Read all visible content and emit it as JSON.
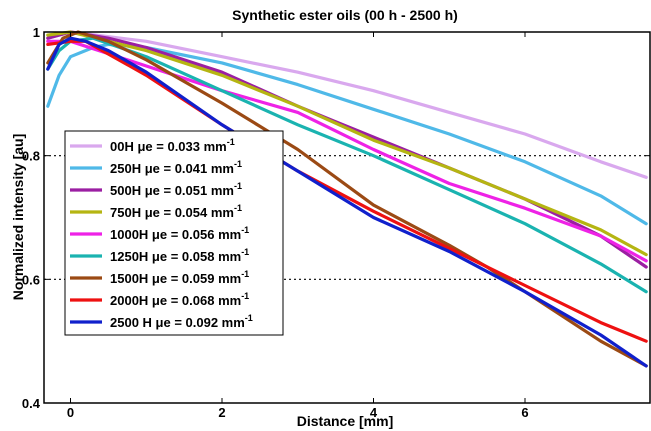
{
  "chart_data": {
    "type": "line",
    "title": "Synthetic ester oils (00 h - 2500 h)",
    "xlabel": "Distance [mm]",
    "ylabel": "Normalized intensity [au]",
    "xlim": [
      -0.35,
      7.65
    ],
    "ylim": [
      0.4,
      1.0
    ],
    "xticks": [
      0,
      2,
      4,
      6
    ],
    "xtick_labels": [
      "0",
      "2",
      "4",
      "6"
    ],
    "yticks": [
      0.4,
      0.6,
      0.8,
      1.0
    ],
    "ytick_labels": [
      "0.4",
      "0.6",
      "0.8",
      "1"
    ],
    "grid": "dotted horizontal at 0.6 and 0.8",
    "legend_position": "left",
    "series": [
      {
        "name": "00H μe = 0.033 mm",
        "superscript": "-1",
        "color": "#d9a8ee",
        "x": [
          -0.3,
          0.0,
          1.0,
          2.0,
          3.0,
          4.0,
          5.0,
          6.0,
          7.0,
          7.6
        ],
        "y": [
          0.99,
          1.0,
          0.985,
          0.96,
          0.935,
          0.905,
          0.87,
          0.835,
          0.79,
          0.765
        ]
      },
      {
        "name": "250H μe = 0.041 mm",
        "superscript": "-1",
        "color": "#4fb9e8",
        "x": [
          -0.3,
          -0.15,
          0.0,
          0.3,
          0.5,
          1.0,
          2.0,
          3.0,
          4.0,
          5.0,
          6.0,
          7.0,
          7.6
        ],
        "y": [
          0.88,
          0.93,
          0.96,
          0.975,
          0.98,
          0.975,
          0.95,
          0.915,
          0.875,
          0.835,
          0.79,
          0.735,
          0.69
        ]
      },
      {
        "name": "500H μe = 0.051 mm",
        "superscript": "-1",
        "color": "#9b1fa2",
        "x": [
          -0.3,
          0.0,
          0.5,
          1.0,
          2.0,
          3.0,
          3.5,
          4.0,
          5.0,
          6.0,
          7.0,
          7.6
        ],
        "y": [
          0.99,
          1.0,
          0.99,
          0.975,
          0.935,
          0.88,
          0.855,
          0.83,
          0.78,
          0.73,
          0.67,
          0.62
        ]
      },
      {
        "name": "750H μe = 0.054 mm",
        "superscript": "-1",
        "color": "#b5b512",
        "x": [
          -0.3,
          0.0,
          1.0,
          2.0,
          3.0,
          4.0,
          5.0,
          6.0,
          7.0,
          7.6
        ],
        "y": [
          0.995,
          1.0,
          0.97,
          0.93,
          0.88,
          0.825,
          0.78,
          0.73,
          0.68,
          0.64
        ]
      },
      {
        "name": "1000H μe = 0.056 mm",
        "superscript": "-1",
        "color": "#ee22e6",
        "x": [
          -0.3,
          0.0,
          1.0,
          2.0,
          3.0,
          4.0,
          5.0,
          6.0,
          7.0,
          7.6
        ],
        "y": [
          0.985,
          0.985,
          0.945,
          0.905,
          0.87,
          0.81,
          0.755,
          0.715,
          0.67,
          0.63
        ]
      },
      {
        "name": "1250H μe = 0.058 mm",
        "superscript": "-1",
        "color": "#1ab3b0",
        "x": [
          -0.3,
          -0.15,
          0.0,
          0.3,
          1.0,
          2.0,
          3.0,
          4.0,
          5.0,
          6.0,
          7.0,
          7.6
        ],
        "y": [
          0.94,
          0.97,
          0.985,
          0.99,
          0.96,
          0.905,
          0.85,
          0.8,
          0.745,
          0.69,
          0.625,
          0.58
        ]
      },
      {
        "name": "1500H μe = 0.059 mm",
        "superscript": "-1",
        "color": "#9b4a14",
        "x": [
          -0.3,
          -0.1,
          0.1,
          0.5,
          1.0,
          2.0,
          3.0,
          4.0,
          5.0,
          5.5,
          6.0,
          7.0,
          7.6
        ],
        "y": [
          0.95,
          0.99,
          1.0,
          0.985,
          0.955,
          0.885,
          0.81,
          0.72,
          0.655,
          0.62,
          0.58,
          0.5,
          0.46
        ]
      },
      {
        "name": "2000H μe = 0.068 mm",
        "superscript": "-1",
        "color": "#ee1111",
        "x": [
          -0.3,
          0.0,
          0.2,
          1.0,
          2.0,
          3.0,
          4.0,
          5.0,
          6.0,
          7.0,
          7.6
        ],
        "y": [
          0.98,
          0.985,
          0.985,
          0.93,
          0.85,
          0.775,
          0.71,
          0.65,
          0.59,
          0.53,
          0.5
        ]
      },
      {
        "name": "2500 H μe = 0.092 mm",
        "superscript": "-1",
        "color": "#1020cc",
        "x": [
          -0.3,
          -0.15,
          0.0,
          0.2,
          0.5,
          1.0,
          2.0,
          3.0,
          4.0,
          5.0,
          6.0,
          7.0,
          7.6
        ],
        "y": [
          0.94,
          0.98,
          0.99,
          0.985,
          0.97,
          0.935,
          0.85,
          0.775,
          0.7,
          0.645,
          0.58,
          0.51,
          0.46
        ]
      }
    ]
  }
}
